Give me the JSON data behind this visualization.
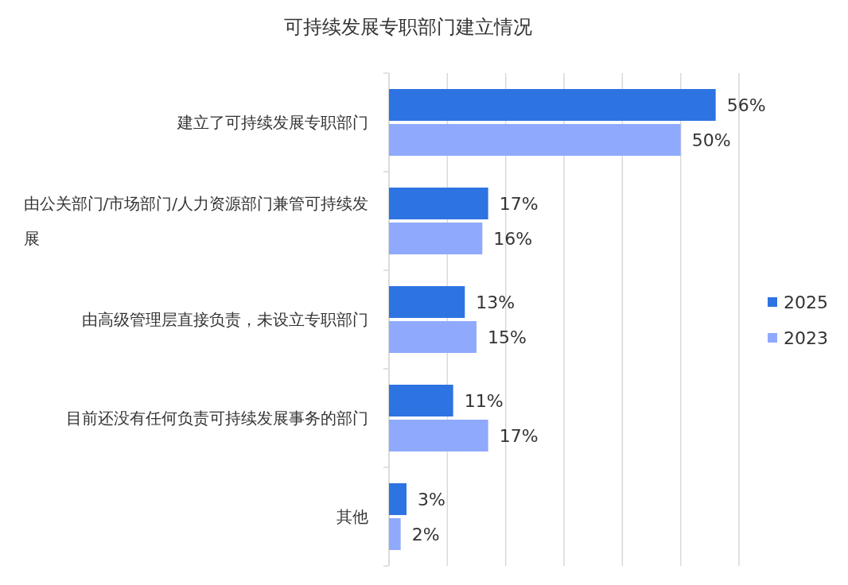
{
  "chart_data": {
    "type": "bar",
    "orientation": "horizontal",
    "title": "可持续发展专职部门建立情况",
    "categories": [
      "建立了可持续发展专职部门",
      "由公关部门/市场部门/人力资源部门兼管可持续发展",
      "由高级管理层直接负责，未设立专职部门",
      "目前还没有任何负责可持续发展事务的部门",
      "其他"
    ],
    "series": [
      {
        "name": "2025",
        "color": "#2e73e2",
        "values": [
          56,
          17,
          13,
          11,
          3
        ],
        "value_labels": [
          "56%",
          "17%",
          "13%",
          "11%",
          "3%"
        ]
      },
      {
        "name": "2023",
        "color": "#8fa9fc",
        "values": [
          50,
          16,
          15,
          17,
          2
        ],
        "value_labels": [
          "50%",
          "16%",
          "15%",
          "17%",
          "2%"
        ]
      }
    ],
    "xlim": [
      0,
      60
    ],
    "xticks": [
      {
        "value": 0,
        "label": null
      },
      {
        "value": 10,
        "label": null
      },
      {
        "value": 20,
        "label": null
      },
      {
        "value": 30,
        "label": null
      },
      {
        "value": 40,
        "label": null
      },
      {
        "value": 50,
        "label": null
      },
      {
        "value": 60,
        "label": null
      }
    ],
    "tick_labels": "y",
    "grid": "x",
    "legend": "right"
  }
}
